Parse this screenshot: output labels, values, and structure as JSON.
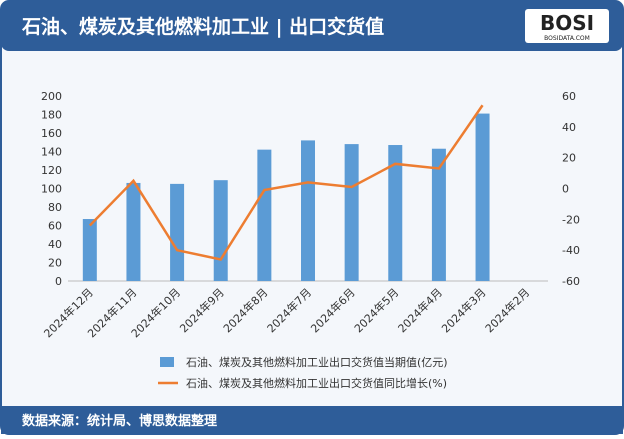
{
  "chart_data": {
    "type": "bar-line",
    "title": "石油、煤炭及其他燃料加工业 | 出口交货值",
    "logo": "BOSI",
    "logo_sub": "BOSIDATA.COM",
    "source": "数据来源：统计局、博思数据整理",
    "categories": [
      "2024年12月",
      "2024年11月",
      "2024年10月",
      "2024年9月",
      "2024年8月",
      "2024年7月",
      "2024年6月",
      "2024年5月",
      "2024年4月",
      "2024年3月",
      "2024年2月"
    ],
    "series": [
      {
        "name": "石油、煤炭及其他燃料加工业出口交货值当期值(亿元)",
        "color": "#5b9bd5",
        "type": "bar",
        "values": [
          67,
          106,
          105,
          109,
          142,
          152,
          148,
          147,
          143,
          181,
          null
        ]
      },
      {
        "name": "石油、煤炭及其他燃料加工业出口交货值同比增长(%)",
        "color": "#ed7d31",
        "type": "line",
        "axis": "y2",
        "values": [
          -24,
          5,
          -40,
          -46,
          -1,
          4,
          1,
          16,
          13,
          54,
          null
        ]
      }
    ],
    "ylim": [
      0,
      200
    ],
    "yticks": [
      0,
      20,
      40,
      60,
      80,
      100,
      120,
      140,
      160,
      180,
      200
    ],
    "y2lim": [
      -60,
      60
    ],
    "y2ticks": [
      -60,
      -40,
      -20,
      0,
      20,
      40,
      60
    ]
  }
}
